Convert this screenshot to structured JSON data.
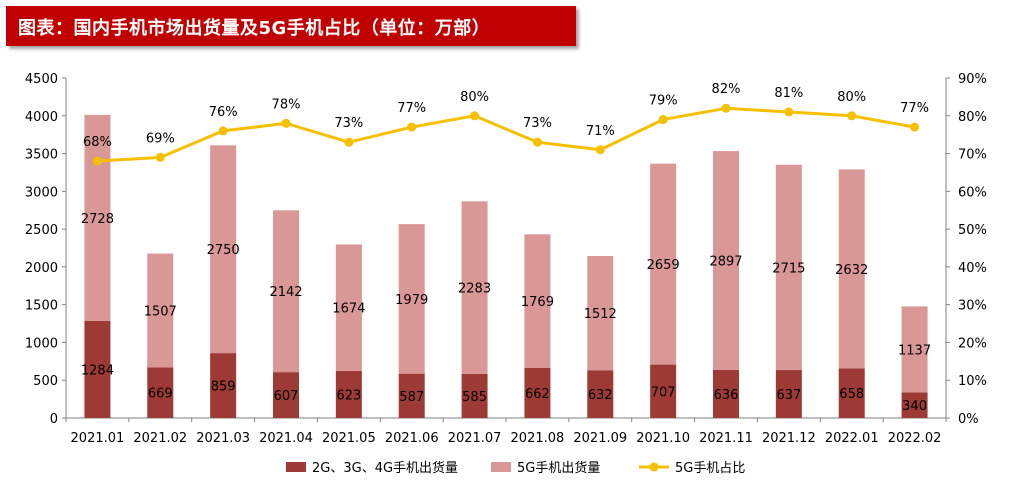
{
  "title": "图表：国内手机市场出货量及5G手机占比（单位：万部）",
  "chart_data": {
    "type": "bar",
    "stacked": true,
    "title": "图表：国内手机市场出货量及5G手机占比（单位：万部）",
    "categories": [
      "2021.01",
      "2021.02",
      "2021.03",
      "2021.04",
      "2021.05",
      "2021.06",
      "2021.07",
      "2021.08",
      "2021.09",
      "2021.10",
      "2021.11",
      "2021.12",
      "2022.01",
      "2022.02"
    ],
    "series": [
      {
        "name": "2G、3G、4G手机出货量",
        "type": "bar",
        "axis": "left",
        "color": "#9e3a35",
        "values": [
          1284,
          669,
          859,
          607,
          623,
          587,
          585,
          662,
          632,
          707,
          636,
          637,
          658,
          340
        ]
      },
      {
        "name": "5G手机出货量",
        "type": "bar",
        "axis": "left",
        "color": "#d99795",
        "values": [
          2728,
          1507,
          2750,
          2142,
          1674,
          1979,
          2283,
          1769,
          1512,
          2659,
          2897,
          2715,
          2632,
          1137
        ]
      },
      {
        "name": "5G手机占比",
        "type": "line",
        "axis": "right",
        "color": "#f5c000",
        "values": [
          68,
          69,
          76,
          78,
          73,
          77,
          80,
          73,
          71,
          79,
          82,
          81,
          80,
          77
        ]
      }
    ],
    "y_left": {
      "min": 0,
      "max": 4500,
      "step": 500,
      "ticks": [
        "0",
        "500",
        "1000",
        "1500",
        "2000",
        "2500",
        "3000",
        "3500",
        "4000",
        "4500"
      ]
    },
    "y_right": {
      "min": 0,
      "max": 90,
      "step": 10,
      "ticks": [
        "0%",
        "10%",
        "20%",
        "30%",
        "40%",
        "50%",
        "60%",
        "70%",
        "80%",
        "90%"
      ]
    },
    "legend_position": "bottom",
    "grid": false
  }
}
